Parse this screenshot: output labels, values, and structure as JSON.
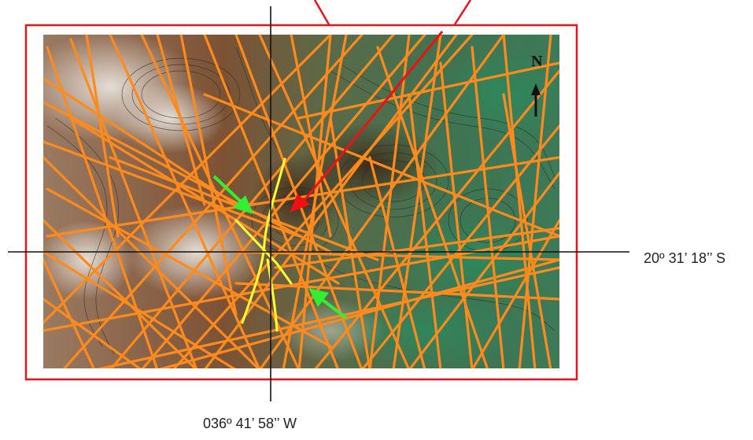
{
  "coordinates": {
    "latitude": "20º 31’ 18’’ S",
    "longitude": "036º 41’ 58’’ W"
  },
  "north_arrow": {
    "label": "N"
  },
  "colors": {
    "frame": "#e8141c",
    "track_lines": "#ff8a1e",
    "highlight_lines": "#ffff33",
    "green_arrows": "#33ee33",
    "red_arrow": "#ee1111",
    "crosshair": "#111111"
  },
  "icons": [
    "north-arrow-icon",
    "green-arrow-icon",
    "red-arrow-icon"
  ]
}
